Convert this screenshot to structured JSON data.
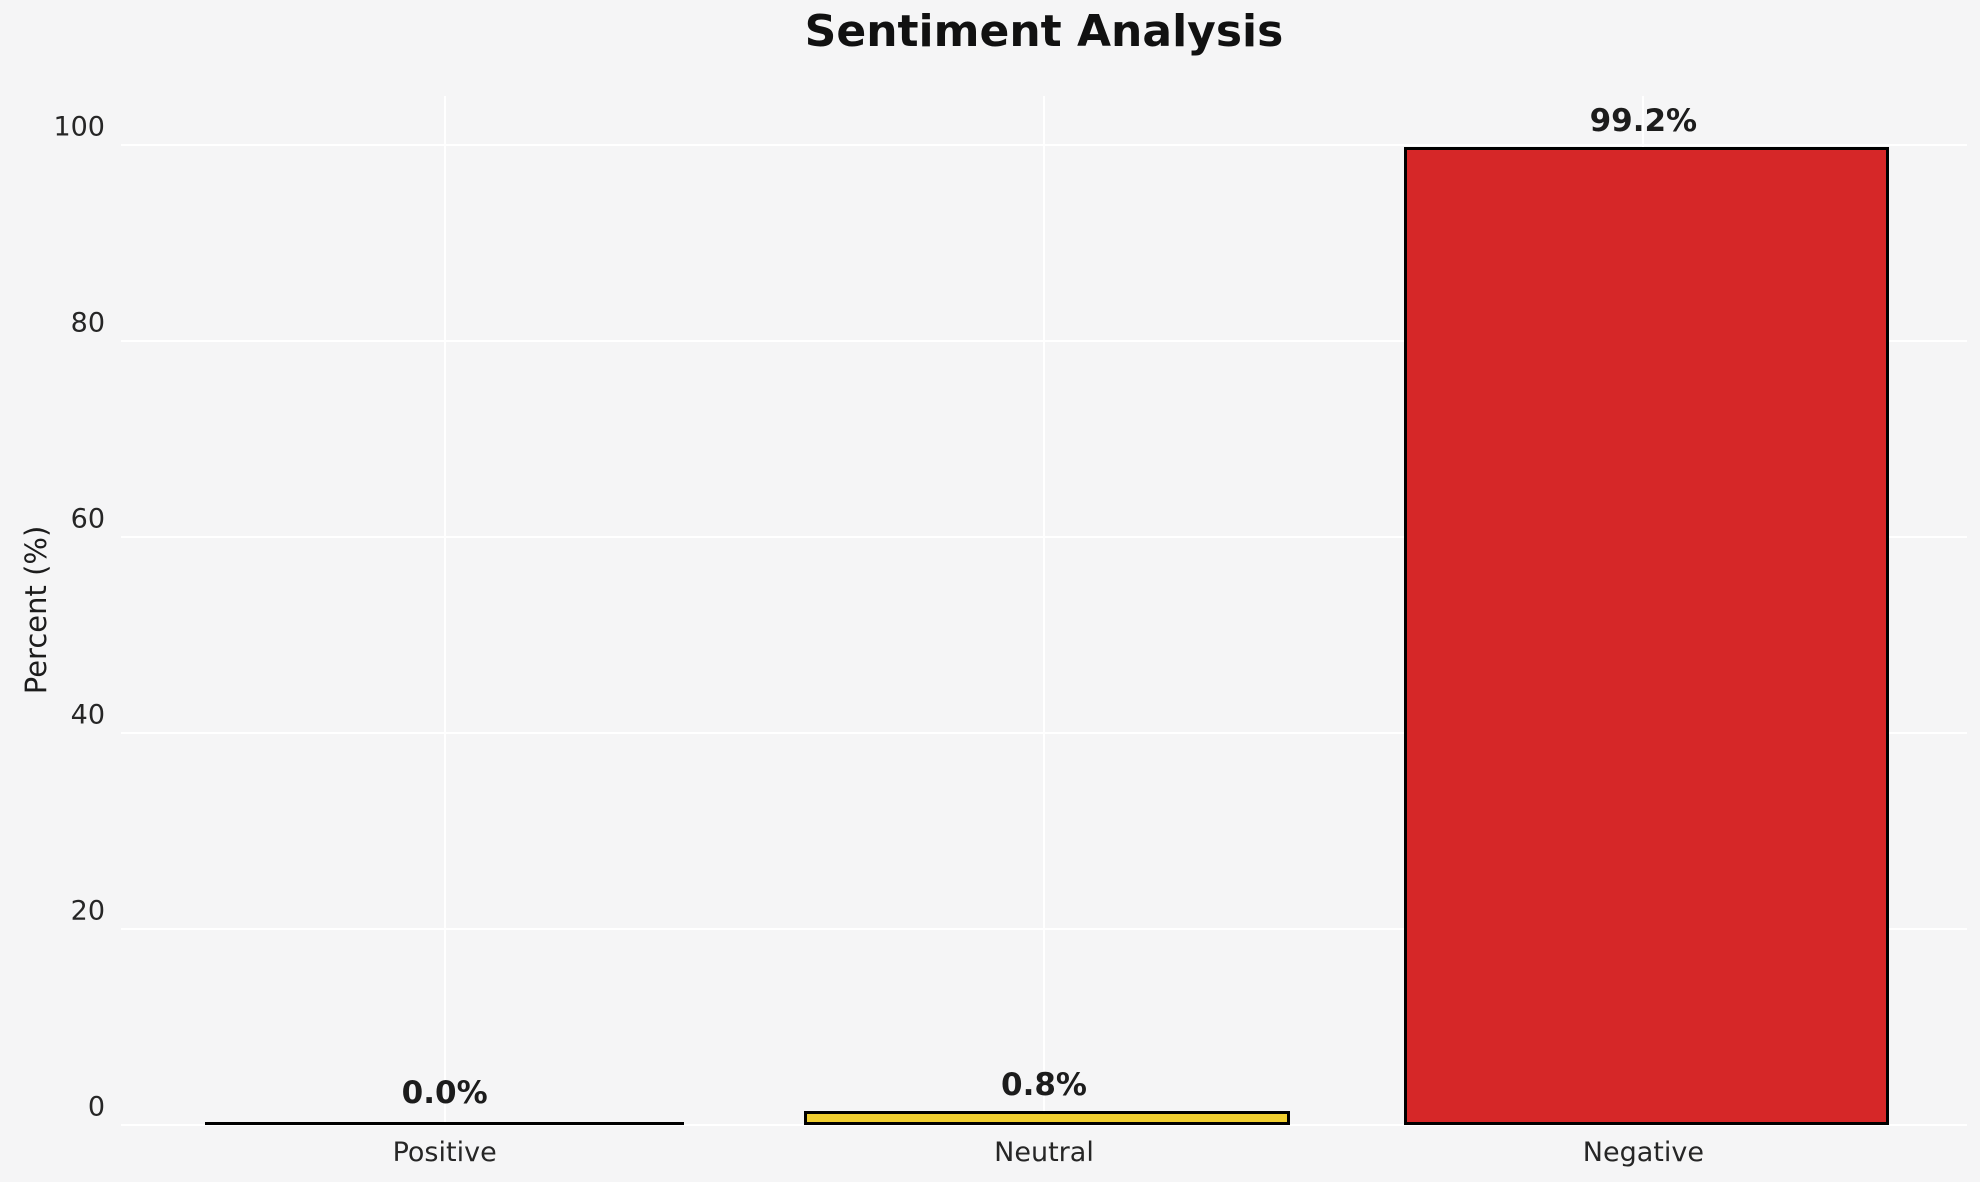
{
  "page": {
    "background_color": "#f5f5f6"
  },
  "chart_data": {
    "type": "bar",
    "title": "Sentiment Analysis",
    "xlabel": "",
    "ylabel": "Percent (%)",
    "categories": [
      "Positive",
      "Neutral",
      "Negative"
    ],
    "values": [
      0.0,
      0.8,
      99.2
    ],
    "value_labels": [
      "0.0%",
      "0.8%",
      "99.2%"
    ],
    "bar_colors": [
      "#3a9e4f",
      "#F0CE2F",
      "#D62728"
    ],
    "bar_edge_color": "#000000",
    "yticks": [
      0,
      20,
      40,
      60,
      80,
      100
    ],
    "ytick_labels": [
      "0",
      "20",
      "40",
      "60",
      "80",
      "100"
    ],
    "ylim": [
      0,
      105
    ],
    "grid": true,
    "grid_color": "#ffffff",
    "grid_axes": "both",
    "legend": "none",
    "plot_background": "#f5f5f6",
    "text_color": "#1c1c1c",
    "bar_width_fraction": 0.8,
    "x_range_units": 3.08,
    "x_left_pad_units": 0.54
  }
}
